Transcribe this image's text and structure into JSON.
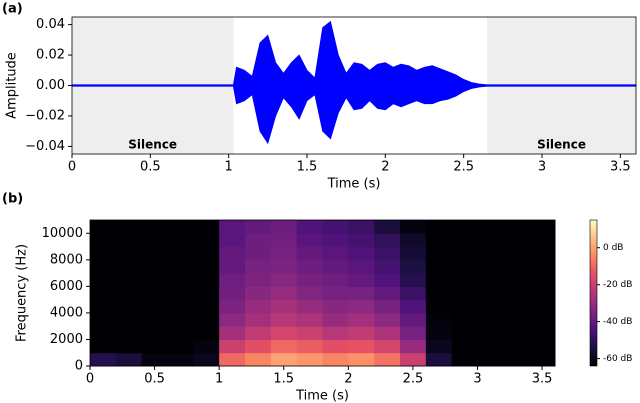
{
  "chart_data": [
    {
      "type": "area",
      "panel_label": "(a)",
      "x_label": "Time (s)",
      "y_label": "Amplitude",
      "color": "#0000ff",
      "x": [
        0,
        1.03,
        1.05,
        1.1,
        1.15,
        1.2,
        1.25,
        1.3,
        1.35,
        1.4,
        1.45,
        1.5,
        1.55,
        1.6,
        1.65,
        1.7,
        1.75,
        1.8,
        1.85,
        1.9,
        1.95,
        2.0,
        2.05,
        2.1,
        2.15,
        2.2,
        2.25,
        2.3,
        2.35,
        2.4,
        2.45,
        2.5,
        2.55,
        2.6,
        2.65,
        3.6
      ],
      "upper": [
        0.0005,
        0.0005,
        0.012,
        0.01,
        0.006,
        0.028,
        0.033,
        0.015,
        0.008,
        0.015,
        0.02,
        0.01,
        0.005,
        0.038,
        0.042,
        0.02,
        0.008,
        0.015,
        0.014,
        0.01,
        0.014,
        0.015,
        0.012,
        0.014,
        0.013,
        0.01,
        0.012,
        0.013,
        0.011,
        0.009,
        0.007,
        0.004,
        0.002,
        0.001,
        0.0005,
        0.0005
      ],
      "lower": [
        -0.0005,
        -0.0005,
        -0.012,
        -0.01,
        -0.006,
        -0.03,
        -0.038,
        -0.02,
        -0.008,
        -0.014,
        -0.022,
        -0.01,
        -0.006,
        -0.03,
        -0.035,
        -0.018,
        -0.008,
        -0.016,
        -0.015,
        -0.01,
        -0.015,
        -0.016,
        -0.012,
        -0.014,
        -0.012,
        -0.01,
        -0.012,
        -0.012,
        -0.01,
        -0.009,
        -0.007,
        -0.004,
        -0.002,
        -0.001,
        -0.0005,
        -0.0005
      ],
      "xlim": [
        0,
        3.6
      ],
      "ylim": [
        -0.045,
        0.045
      ],
      "xticks": [
        0,
        0.5,
        1,
        1.5,
        2,
        2.5,
        3,
        3.5
      ],
      "yticks": [
        {
          "value": -0.04,
          "label": "−0.04"
        },
        {
          "value": -0.02,
          "label": "−0.02"
        },
        {
          "value": 0,
          "label": "0.00"
        },
        {
          "value": 0.02,
          "label": "0.02"
        },
        {
          "value": 0.04,
          "label": "0.04"
        }
      ],
      "regions": [
        {
          "label": "Silence",
          "range": [
            0,
            1.03
          ]
        },
        {
          "label": "Silence",
          "range": [
            2.65,
            3.6
          ]
        }
      ]
    },
    {
      "type": "heatmap",
      "panel_label": "(b)",
      "x_label": "Time (s)",
      "y_label": "Frequency (Hz)",
      "xbins": [
        0,
        0.2,
        0.4,
        0.6,
        0.8,
        1.0,
        1.2,
        1.4,
        1.6,
        1.8,
        2.0,
        2.2,
        2.4,
        2.6,
        2.8,
        3.0,
        3.2,
        3.4,
        3.6
      ],
      "ybins": [
        0,
        1000,
        2000,
        3000,
        4000,
        5000,
        6000,
        7000,
        8000,
        9000,
        10000,
        11000
      ],
      "z": [
        [
          -52,
          -55,
          -62,
          -62,
          -60,
          -10,
          -5,
          0,
          -2,
          -5,
          -3,
          -8,
          -20,
          -55,
          -64,
          -64,
          -64,
          -64
        ],
        [
          -64,
          -64,
          -64,
          -64,
          -62,
          -20,
          -15,
          -10,
          -12,
          -15,
          -14,
          -18,
          -30,
          -60,
          -64,
          -64,
          -64,
          -64
        ],
        [
          -64,
          -64,
          -64,
          -64,
          -64,
          -28,
          -22,
          -18,
          -20,
          -24,
          -22,
          -26,
          -36,
          -62,
          -64,
          -64,
          -64,
          -64
        ],
        [
          -64,
          -64,
          -64,
          -64,
          -64,
          -32,
          -28,
          -24,
          -26,
          -30,
          -28,
          -32,
          -40,
          -63,
          -64,
          -64,
          -64,
          -64
        ],
        [
          -64,
          -64,
          -64,
          -64,
          -64,
          -35,
          -30,
          -27,
          -30,
          -33,
          -32,
          -36,
          -44,
          -64,
          -64,
          -64,
          -64,
          -64
        ],
        [
          -64,
          -64,
          -64,
          -64,
          -64,
          -37,
          -33,
          -30,
          -34,
          -36,
          -36,
          -40,
          -48,
          -64,
          -64,
          -64,
          -64,
          -64
        ],
        [
          -64,
          -64,
          -64,
          -64,
          -64,
          -38,
          -35,
          -33,
          -36,
          -38,
          -40,
          -44,
          -52,
          -64,
          -64,
          -64,
          -64,
          -64
        ],
        [
          -64,
          -64,
          -64,
          -64,
          -64,
          -40,
          -36,
          -35,
          -38,
          -40,
          -42,
          -46,
          -54,
          -64,
          -64,
          -64,
          -64,
          -64
        ],
        [
          -64,
          -64,
          -64,
          -64,
          -64,
          -40,
          -38,
          -36,
          -40,
          -42,
          -44,
          -48,
          -56,
          -64,
          -64,
          -64,
          -64,
          -64
        ],
        [
          -64,
          -64,
          -64,
          -64,
          -64,
          -42,
          -38,
          -37,
          -42,
          -44,
          -46,
          -50,
          -58,
          -64,
          -64,
          -64,
          -64,
          -64
        ],
        [
          -64,
          -64,
          -64,
          -64,
          -64,
          -42,
          -40,
          -38,
          -44,
          -46,
          -48,
          -55,
          -62,
          -64,
          -64,
          -64,
          -64,
          -64
        ]
      ],
      "xlim": [
        0,
        3.6
      ],
      "ylim": [
        0,
        11000
      ],
      "xticks": [
        0,
        0.5,
        1,
        1.5,
        2,
        2.5,
        3,
        3.5
      ],
      "yticks": [
        0,
        2000,
        4000,
        6000,
        8000,
        10000
      ],
      "clim": [
        -64,
        15
      ],
      "cticks": [
        {
          "value": -60,
          "label": "-60 dB"
        },
        {
          "value": -40,
          "label": "-40 dB"
        },
        {
          "value": -20,
          "label": "-20 dB"
        },
        {
          "value": 0,
          "label": "0 dB"
        }
      ]
    }
  ]
}
